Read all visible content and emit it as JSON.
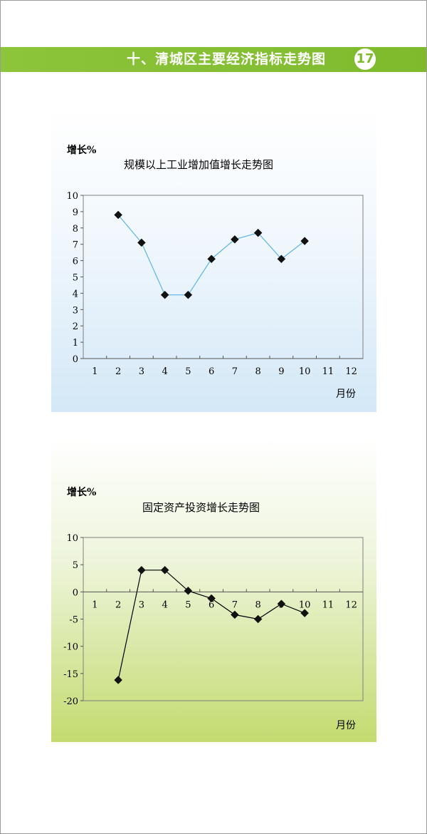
{
  "header": {
    "title": "十、清城区主要经济指标走势图",
    "page_number": "17",
    "band_color": "#8cc43a"
  },
  "chart_data": [
    {
      "type": "line",
      "title": "规模以上工业增加值增长走势图",
      "ylabel": "增长%",
      "xlabel": "月份",
      "categories": [
        "1",
        "2",
        "3",
        "4",
        "5",
        "6",
        "7",
        "8",
        "9",
        "10",
        "11",
        "12"
      ],
      "y_ticks": [
        "0",
        "1",
        "2",
        "3",
        "4",
        "5",
        "6",
        "7",
        "8",
        "9",
        "10"
      ],
      "ylim": [
        0,
        10
      ],
      "series": [
        {
          "x": [
            2,
            3,
            4,
            5,
            6,
            7,
            8,
            9,
            10
          ],
          "values": [
            8.8,
            7.1,
            3.9,
            3.9,
            6.1,
            7.3,
            7.7,
            6.1,
            7.2
          ]
        }
      ],
      "line_color": "#5ab4e6",
      "marker": "diamond",
      "grid": false
    },
    {
      "type": "line",
      "title": "固定资产投资增长走势图",
      "ylabel": "增长%",
      "xlabel": "月份",
      "categories": [
        "1",
        "2",
        "3",
        "4",
        "5",
        "6",
        "7",
        "8",
        "9",
        "10",
        "11",
        "12"
      ],
      "y_ticks": [
        "-20",
        "-15",
        "-10",
        "-5",
        "0",
        "5",
        "10"
      ],
      "ylim": [
        -20,
        10
      ],
      "series": [
        {
          "x": [
            2,
            3,
            4,
            5,
            6,
            7,
            8,
            9,
            10
          ],
          "values": [
            -16.2,
            4.0,
            4.0,
            0.2,
            -1.2,
            -4.2,
            -5.0,
            -2.2,
            -3.9
          ]
        }
      ],
      "line_color": "#000000",
      "marker": "diamond",
      "grid": false
    }
  ]
}
